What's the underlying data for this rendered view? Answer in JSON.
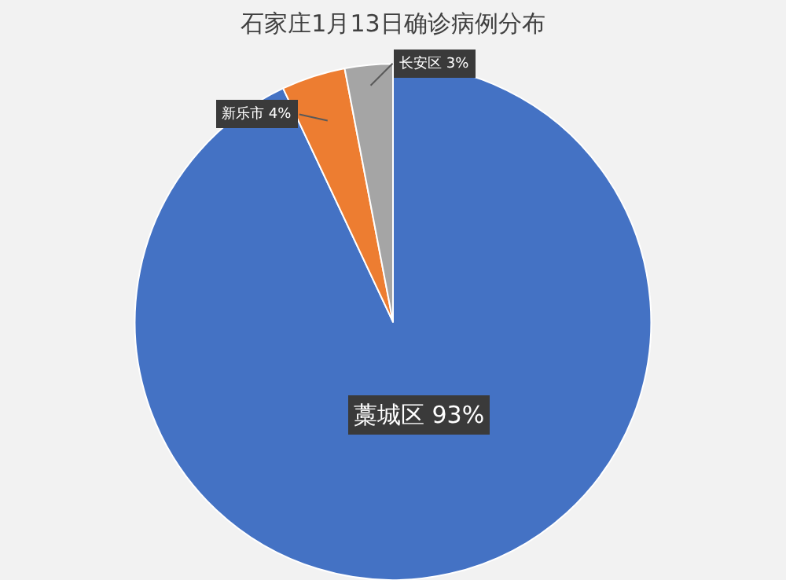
{
  "chart_data": {
    "type": "pie",
    "title": "石家庄1月13日确诊病例分布",
    "categories": [
      "藁城区",
      "新乐市",
      "长安区"
    ],
    "values": [
      93,
      4,
      3
    ],
    "value_labels": [
      "93%",
      "4%",
      "3%"
    ],
    "colors": [
      "#4472c4",
      "#ed7d31",
      "#a5a5a5"
    ]
  }
}
